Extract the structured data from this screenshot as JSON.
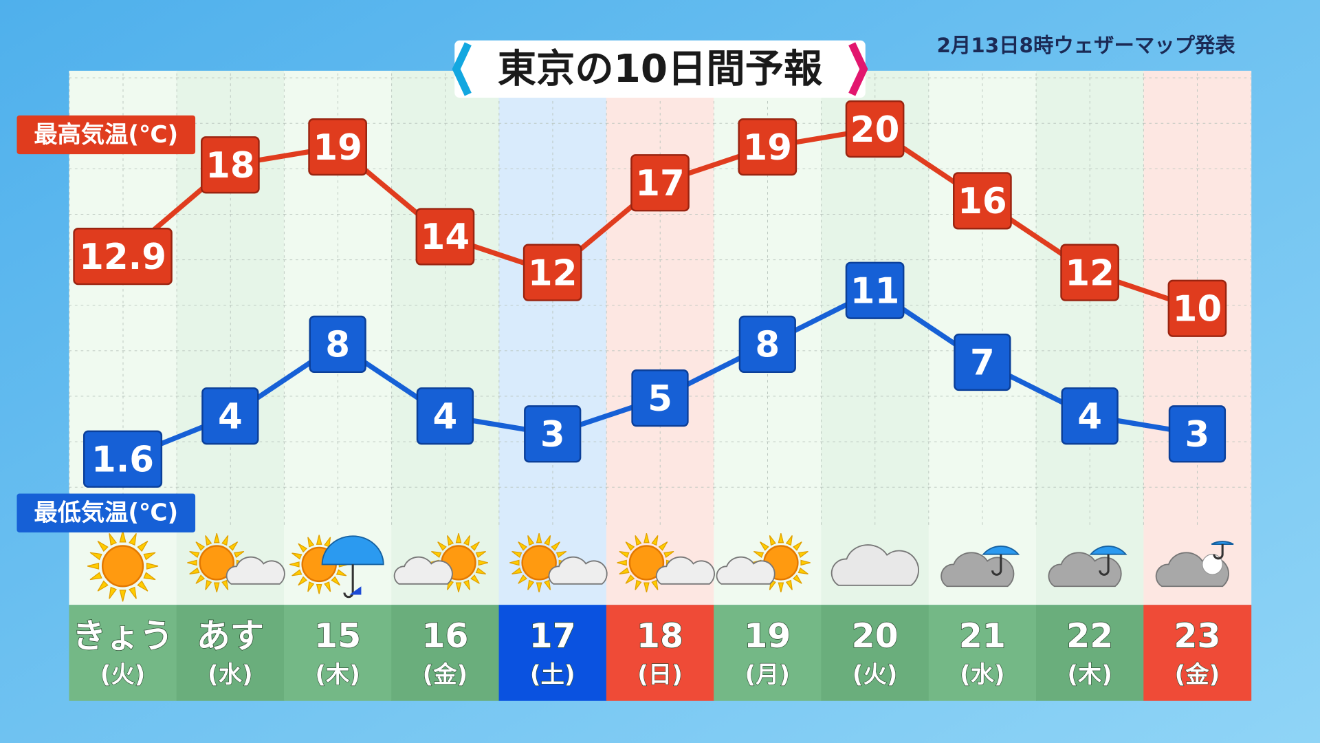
{
  "chart_data": {
    "type": "line",
    "title": "東京の10日間予報",
    "note": "2月13日8時ウェザーマップ発表",
    "categories": [
      "きょう",
      "あす",
      "15",
      "16",
      "17",
      "18",
      "19",
      "20",
      "21",
      "22",
      "23"
    ],
    "weekdays": [
      "(火)",
      "(水)",
      "(木)",
      "(金)",
      "(土)",
      "(日)",
      "(月)",
      "(火)",
      "(水)",
      "(木)",
      "(金)"
    ],
    "series": [
      {
        "name": "最高気温(℃)",
        "color": "#e03c1e",
        "values": [
          12.9,
          18,
          19,
          14,
          12,
          17,
          19,
          20,
          16,
          12,
          10
        ]
      },
      {
        "name": "最低気温(℃)",
        "color": "#1660d6",
        "values": [
          1.6,
          4,
          8,
          4,
          3,
          5,
          8,
          11,
          7,
          4,
          3
        ]
      }
    ],
    "ylim": [
      -2,
      24
    ]
  }
}
